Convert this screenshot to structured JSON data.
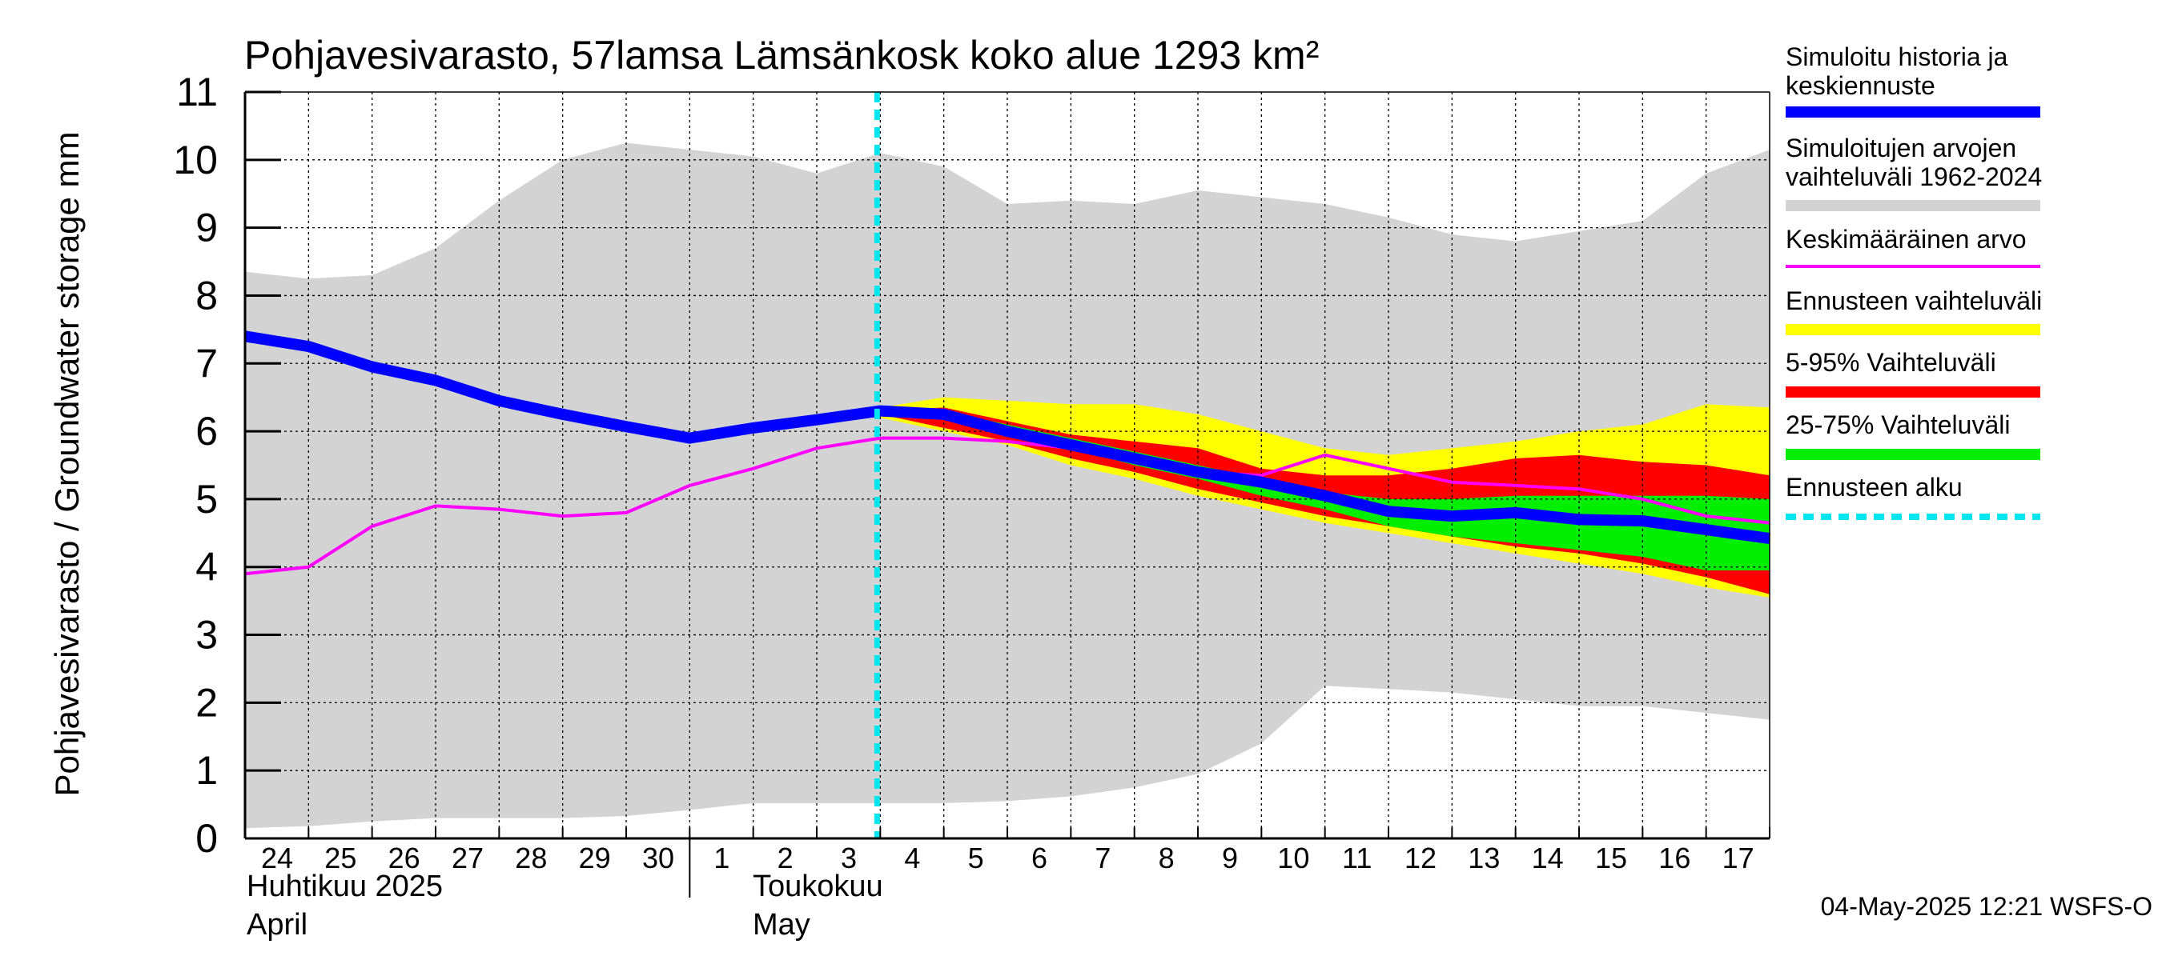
{
  "title": "Pohjavesivarasto, 57lamsa Lämsänkosk koko alue 1293 km²",
  "ylabel": "Pohjavesivarasto / Groundwater storage   mm",
  "footer": "04-May-2025 12:21 WSFS-O",
  "month_labels": [
    {
      "line1": "Huhtikuu  2025",
      "line2": "April"
    },
    {
      "line1": "Toukokuu",
      "line2": "May"
    }
  ],
  "legend": [
    {
      "label": "Simuloitu historia ja keskiennuste",
      "color": "#0000ff",
      "style": "thick"
    },
    {
      "label": "Simuloitujen arvojen vaihteluväli 1962-2024",
      "color": "#d3d3d3",
      "style": "band"
    },
    {
      "label": "Keskimääräinen arvo",
      "color": "#ff00ff",
      "style": "thin"
    },
    {
      "label": "Ennusteen vaihteluväli",
      "color": "#ffff00",
      "style": "band"
    },
    {
      "label": "5-95% Vaihteluväli",
      "color": "#ff0000",
      "style": "band"
    },
    {
      "label": "25-75% Vaihteluväli",
      "color": "#00ee00",
      "style": "band"
    },
    {
      "label": "Ennusteen alku",
      "color": "#00e5ee",
      "style": "dashed"
    }
  ],
  "chart_data": {
    "type": "area",
    "x": [
      "24",
      "25",
      "26",
      "27",
      "28",
      "29",
      "30",
      "1",
      "2",
      "3",
      "4",
      "5",
      "6",
      "7",
      "8",
      "9",
      "10",
      "11",
      "12",
      "13",
      "14",
      "15",
      "16",
      "17"
    ],
    "xlim": [
      0,
      24
    ],
    "ylim": [
      0,
      11
    ],
    "yticks": [
      0,
      1,
      2,
      3,
      4,
      5,
      6,
      7,
      8,
      9,
      10,
      11
    ],
    "grid": true,
    "forecast_start": "4",
    "history_range": {
      "name": "Simuloitujen arvojen vaihteluväli 1962-2024",
      "color": "#d3d3d3",
      "upper": [
        8.35,
        8.25,
        8.3,
        8.7,
        9.4,
        10.0,
        10.25,
        10.15,
        10.05,
        9.8,
        10.1,
        9.9,
        9.35,
        9.4,
        9.35,
        9.55,
        9.45,
        9.35,
        9.15,
        8.9,
        8.8,
        8.95,
        9.1,
        9.8,
        10.15
      ],
      "lower": [
        0.15,
        0.18,
        0.25,
        0.3,
        0.3,
        0.3,
        0.33,
        0.42,
        0.52,
        0.52,
        0.52,
        0.52,
        0.55,
        0.62,
        0.75,
        0.95,
        1.4,
        2.25,
        2.2,
        2.15,
        2.05,
        1.95,
        1.95,
        1.85,
        1.75
      ]
    },
    "forecast_x": [
      10,
      11,
      12,
      13,
      14,
      15,
      16,
      17,
      18,
      19,
      20,
      21,
      22,
      23,
      24
    ],
    "forecast_range": {
      "name": "Ennusteen vaihteluväli",
      "color": "#ffff00",
      "upper": [
        6.35,
        6.5,
        6.45,
        6.4,
        6.4,
        6.25,
        6.0,
        5.75,
        5.65,
        5.75,
        5.85,
        6.0,
        6.1,
        6.4,
        6.35
      ],
      "lower": [
        6.2,
        6.0,
        5.8,
        5.5,
        5.3,
        5.05,
        4.85,
        4.65,
        4.5,
        4.35,
        4.2,
        4.05,
        3.9,
        3.7,
        3.55
      ]
    },
    "p5_95": {
      "name": "5-95% Vaihteluväli",
      "color": "#ff0000",
      "upper": [
        6.3,
        6.35,
        6.15,
        5.95,
        5.85,
        5.75,
        5.45,
        5.35,
        5.35,
        5.45,
        5.6,
        5.65,
        5.55,
        5.5,
        5.35
      ],
      "lower": [
        6.25,
        6.05,
        5.85,
        5.6,
        5.4,
        5.15,
        4.95,
        4.75,
        4.6,
        4.45,
        4.3,
        4.2,
        4.05,
        3.85,
        3.6
      ]
    },
    "p25_75": {
      "name": "25-75% Vaihteluväli",
      "color": "#00ee00",
      "upper": [
        6.3,
        6.3,
        6.1,
        5.9,
        5.7,
        5.5,
        5.3,
        5.1,
        5.0,
        5.0,
        5.05,
        5.05,
        5.05,
        5.05,
        5.0
      ],
      "lower": [
        6.3,
        6.2,
        6.0,
        5.75,
        5.5,
        5.3,
        5.05,
        4.85,
        4.6,
        4.45,
        4.35,
        4.25,
        4.15,
        3.95,
        3.95
      ]
    },
    "series": [
      {
        "name": "Simuloitu historia ja keskiennuste",
        "color": "#0000ff",
        "x": [
          0,
          1,
          2,
          3,
          4,
          5,
          6,
          7,
          8,
          9,
          10,
          11,
          12,
          13,
          14,
          15,
          16,
          17,
          18,
          19,
          20,
          21,
          22,
          23,
          24
        ],
        "values": [
          7.4,
          7.25,
          6.95,
          6.75,
          6.45,
          6.25,
          6.07,
          5.9,
          6.05,
          6.17,
          6.3,
          6.25,
          6.0,
          5.8,
          5.6,
          5.4,
          5.25,
          5.05,
          4.82,
          4.75,
          4.8,
          4.7,
          4.68,
          4.55,
          4.42
        ]
      },
      {
        "name": "Keskimääräinen arvo",
        "color": "#ff00ff",
        "x": [
          0,
          1,
          2,
          3,
          4,
          5,
          6,
          7,
          8,
          9,
          10,
          11,
          12,
          13,
          14,
          15,
          16,
          17,
          18,
          19,
          20,
          21,
          22,
          23,
          24
        ],
        "values": [
          3.9,
          4.0,
          4.6,
          4.9,
          4.85,
          4.75,
          4.8,
          5.2,
          5.45,
          5.75,
          5.9,
          5.9,
          5.85,
          5.75,
          5.55,
          5.4,
          5.35,
          5.65,
          5.45,
          5.25,
          5.2,
          5.15,
          5.0,
          4.75,
          4.65
        ]
      }
    ]
  }
}
